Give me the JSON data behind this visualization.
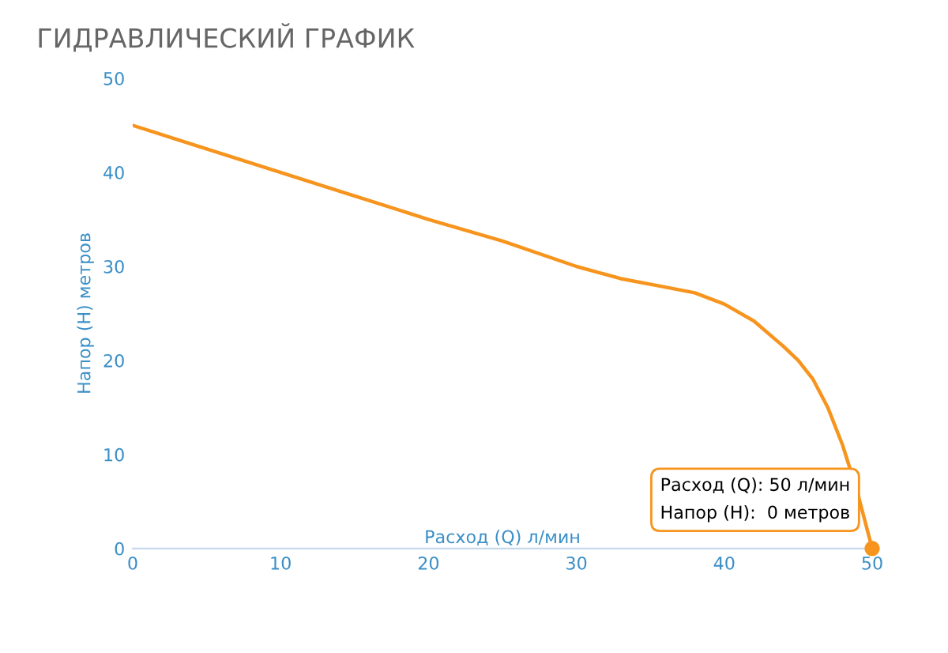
{
  "chart_data": {
    "type": "line",
    "title": "ГИДРАВЛИЧЕСКИЙ ГРАФИК",
    "xlabel": "Расход (Q) л/мин",
    "ylabel": "Напор (H) метров",
    "x": [
      0,
      5,
      10,
      15,
      20,
      25,
      30,
      33,
      36,
      38,
      40,
      42,
      44,
      45,
      46,
      47,
      48,
      49,
      50
    ],
    "series": [
      {
        "color": "#f7941d",
        "values": [
          45,
          42.5,
          40,
          37.5,
          35,
          32.7,
          30,
          28.7,
          27.8,
          27.2,
          26,
          24.2,
          21.5,
          20,
          18,
          15,
          11,
          6,
          0
        ]
      }
    ],
    "xlim": [
      0,
      50
    ],
    "ylim": [
      0,
      50
    ],
    "xticks": [
      0,
      10,
      20,
      30,
      40,
      50
    ],
    "yticks": [
      0,
      10,
      20,
      30,
      40,
      50
    ],
    "grid": false,
    "legend": false,
    "marker": "none",
    "line_style": "solid",
    "annotations": [
      {
        "text": "Расход (Q): 50 л/мин\nНапор (H):  0 метров",
        "x": 50,
        "y": 0
      }
    ]
  }
}
